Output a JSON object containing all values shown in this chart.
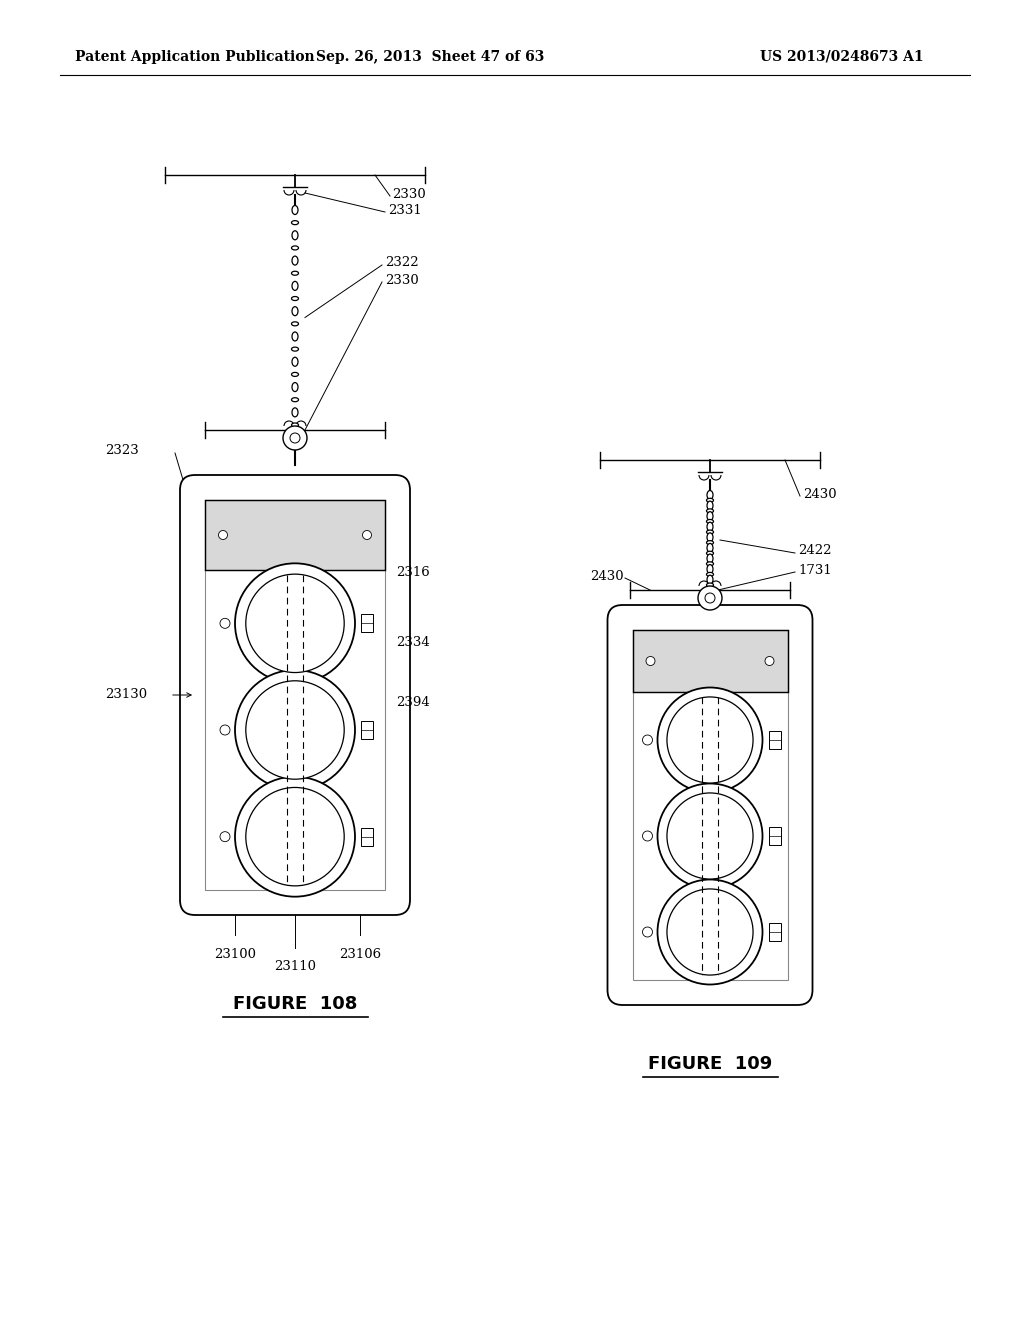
{
  "bg_color": "#ffffff",
  "header_left": "Patent Application Publication",
  "header_center": "Sep. 26, 2013  Sheet 47 of 63",
  "header_right": "US 2013/0248673 A1",
  "fig108_title": "FIGURE  108",
  "fig109_title": "FIGURE  109"
}
